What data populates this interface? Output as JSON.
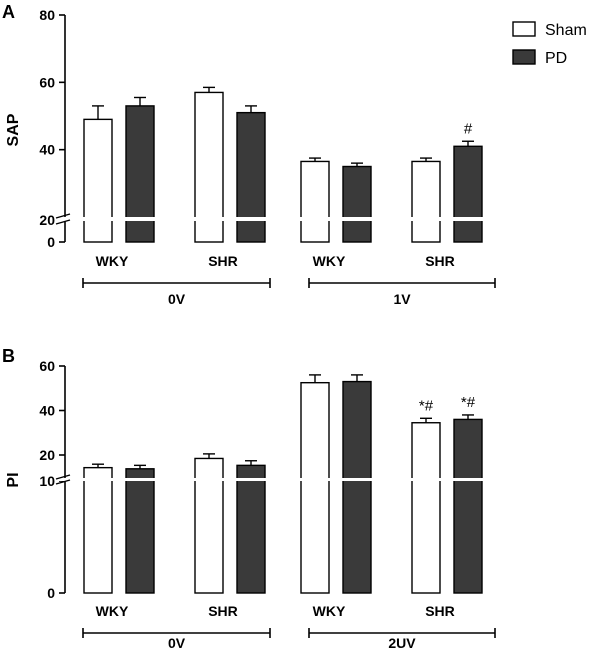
{
  "chart_data": [
    {
      "type": "bar",
      "panel": "A",
      "ylabel": "SAP",
      "yticks": [
        "0",
        "20",
        "40",
        "60",
        "80"
      ],
      "ylim": [
        0,
        80
      ],
      "axis_break": [
        0,
        20
      ],
      "categories": [
        "WKY",
        "SHR",
        "WKY",
        "SHR"
      ],
      "groups": [
        {
          "label": "0V",
          "categories": [
            0,
            1
          ]
        },
        {
          "label": "1V",
          "categories": [
            2,
            3
          ]
        }
      ],
      "series": [
        {
          "name": "Sham",
          "color": "#ffffff",
          "values": [
            49,
            57,
            36.5,
            36.5
          ],
          "errors": [
            4,
            1.5,
            1,
            1
          ]
        },
        {
          "name": "PD",
          "color": "#3a3a3a",
          "values": [
            53,
            51,
            35,
            41
          ],
          "errors": [
            2.5,
            2,
            1,
            1.5
          ]
        }
      ],
      "annotations": [
        {
          "category": 3,
          "series": 1,
          "text": "#"
        }
      ],
      "legend": "top-right"
    },
    {
      "type": "bar",
      "panel": "B",
      "ylabel": "PI",
      "yticks": [
        "0",
        "10",
        "20",
        "40",
        "60"
      ],
      "ylim": [
        0,
        60
      ],
      "axis_break": [
        10,
        20
      ],
      "categories": [
        "WKY",
        "SHR",
        "WKY",
        "SHR"
      ],
      "groups": [
        {
          "label": "0V",
          "categories": [
            0,
            1
          ]
        },
        {
          "label": "2UV",
          "categories": [
            2,
            3
          ]
        }
      ],
      "series": [
        {
          "name": "Sham",
          "color": "#ffffff",
          "values": [
            14.5,
            18.5,
            52.5,
            34.5
          ],
          "errors": [
            1.5,
            2,
            3.5,
            2
          ]
        },
        {
          "name": "PD",
          "color": "#3a3a3a",
          "values": [
            14,
            15.5,
            53,
            36
          ],
          "errors": [
            1.5,
            2,
            3,
            2
          ]
        }
      ],
      "annotations": [
        {
          "category": 3,
          "series": 0,
          "text": "*#"
        },
        {
          "category": 3,
          "series": 1,
          "text": "*#"
        }
      ]
    }
  ]
}
